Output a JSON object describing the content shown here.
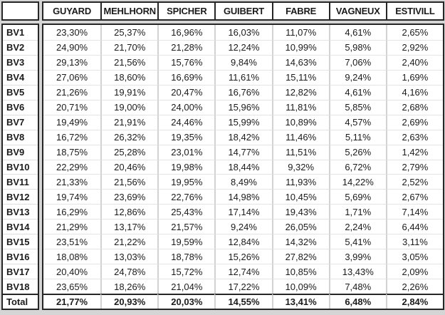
{
  "colors": {
    "background": "#d5d5d5",
    "cell_background": "#ffffff",
    "border_dark": "#262626",
    "column_separator": "#d2d2d2",
    "row_separator": "#e4e4e4",
    "text": "#1b1b1b"
  },
  "chart_data": {
    "type": "table",
    "corner_label": "",
    "columns": [
      "GUYARD",
      "MEHLHORN",
      "SPICHER",
      "GUIBERT",
      "FABRE",
      "VAGNEUX",
      "ESTIVILL"
    ],
    "row_header_prefix": "BV",
    "rows": [
      {
        "label": "BV1",
        "is_total": false,
        "values": [
          "23,30%",
          "25,37%",
          "16,96%",
          "16,03%",
          "11,07%",
          "4,61%",
          "2,65%"
        ]
      },
      {
        "label": "BV2",
        "is_total": false,
        "values": [
          "24,90%",
          "21,70%",
          "21,28%",
          "12,24%",
          "10,99%",
          "5,98%",
          "2,92%"
        ]
      },
      {
        "label": "BV3",
        "is_total": false,
        "values": [
          "29,13%",
          "21,56%",
          "15,76%",
          "9,84%",
          "14,63%",
          "7,06%",
          "2,40%"
        ]
      },
      {
        "label": "BV4",
        "is_total": false,
        "values": [
          "27,06%",
          "18,60%",
          "16,69%",
          "11,61%",
          "15,11%",
          "9,24%",
          "1,69%"
        ]
      },
      {
        "label": "BV5",
        "is_total": false,
        "values": [
          "21,26%",
          "19,91%",
          "20,47%",
          "16,76%",
          "12,82%",
          "4,61%",
          "4,16%"
        ]
      },
      {
        "label": "BV6",
        "is_total": false,
        "values": [
          "20,71%",
          "19,00%",
          "24,00%",
          "15,96%",
          "11,81%",
          "5,85%",
          "2,68%"
        ]
      },
      {
        "label": "BV7",
        "is_total": false,
        "values": [
          "19,49%",
          "21,91%",
          "24,46%",
          "15,99%",
          "10,89%",
          "4,57%",
          "2,69%"
        ]
      },
      {
        "label": "BV8",
        "is_total": false,
        "values": [
          "16,72%",
          "26,32%",
          "19,35%",
          "18,42%",
          "11,46%",
          "5,11%",
          "2,63%"
        ]
      },
      {
        "label": "BV9",
        "is_total": false,
        "values": [
          "18,75%",
          "25,28%",
          "23,01%",
          "14,77%",
          "11,51%",
          "5,26%",
          "1,42%"
        ]
      },
      {
        "label": "BV10",
        "is_total": false,
        "values": [
          "22,29%",
          "20,46%",
          "19,98%",
          "18,44%",
          "9,32%",
          "6,72%",
          "2,79%"
        ]
      },
      {
        "label": "BV11",
        "is_total": false,
        "values": [
          "21,33%",
          "21,56%",
          "19,95%",
          "8,49%",
          "11,93%",
          "14,22%",
          "2,52%"
        ]
      },
      {
        "label": "BV12",
        "is_total": false,
        "values": [
          "19,74%",
          "23,69%",
          "22,76%",
          "14,98%",
          "10,45%",
          "5,69%",
          "2,67%"
        ]
      },
      {
        "label": "BV13",
        "is_total": false,
        "values": [
          "16,29%",
          "12,86%",
          "25,43%",
          "17,14%",
          "19,43%",
          "1,71%",
          "7,14%"
        ]
      },
      {
        "label": "BV14",
        "is_total": false,
        "values": [
          "21,29%",
          "13,17%",
          "21,57%",
          "9,24%",
          "26,05%",
          "2,24%",
          "6,44%"
        ]
      },
      {
        "label": "BV15",
        "is_total": false,
        "values": [
          "23,51%",
          "21,22%",
          "19,59%",
          "12,84%",
          "14,32%",
          "5,41%",
          "3,11%"
        ]
      },
      {
        "label": "BV16",
        "is_total": false,
        "values": [
          "18,08%",
          "13,03%",
          "18,78%",
          "15,26%",
          "27,82%",
          "3,99%",
          "3,05%"
        ]
      },
      {
        "label": "BV17",
        "is_total": false,
        "values": [
          "20,40%",
          "24,78%",
          "15,72%",
          "12,74%",
          "10,85%",
          "13,43%",
          "2,09%"
        ]
      },
      {
        "label": "BV18",
        "is_total": false,
        "values": [
          "23,65%",
          "18,26%",
          "21,04%",
          "17,22%",
          "10,09%",
          "7,48%",
          "2,26%"
        ]
      },
      {
        "label": "Total",
        "is_total": true,
        "values": [
          "21,77%",
          "20,93%",
          "20,03%",
          "14,55%",
          "13,41%",
          "6,48%",
          "2,84%"
        ]
      }
    ]
  }
}
